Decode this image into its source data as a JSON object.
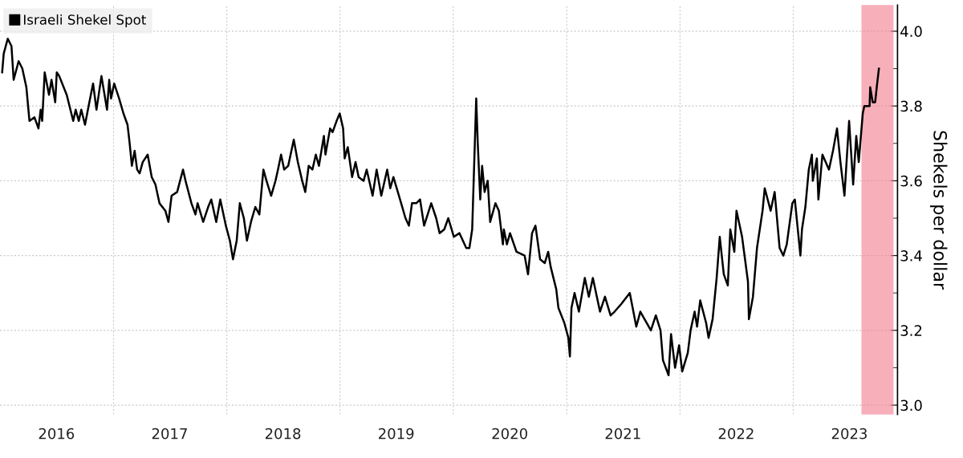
{
  "chart_data": {
    "type": "line",
    "ylabel": "Shekels per dollar",
    "legend": "top left",
    "grid": true,
    "xlim": [
      "2016-01-01",
      "2023-12-03"
    ],
    "xticks": [
      {
        "value": "2016-07-01",
        "label": "2016"
      },
      {
        "value": "2017-01-01",
        "label": null
      },
      {
        "value": "2017-07-01",
        "label": "2017"
      },
      {
        "value": "2018-01-01",
        "label": null
      },
      {
        "value": "2018-07-01",
        "label": "2018"
      },
      {
        "value": "2019-01-01",
        "label": null
      },
      {
        "value": "2019-07-01",
        "label": "2019"
      },
      {
        "value": "2020-01-01",
        "label": null
      },
      {
        "value": "2020-07-01",
        "label": "2020"
      },
      {
        "value": "2021-01-01",
        "label": null
      },
      {
        "value": "2021-07-01",
        "label": "2021"
      },
      {
        "value": "2022-01-01",
        "label": null
      },
      {
        "value": "2022-07-01",
        "label": "2022"
      },
      {
        "value": "2023-01-01",
        "label": null
      },
      {
        "value": "2023-07-01",
        "label": "2023"
      }
    ],
    "ylim": [
      2.975,
      4.07
    ],
    "yticks": [
      {
        "value": 3.0,
        "label": "3.0"
      },
      {
        "value": 3.1,
        "label": null
      },
      {
        "value": 3.2,
        "label": "3.2"
      },
      {
        "value": 3.3,
        "label": null
      },
      {
        "value": 3.4,
        "label": "3.4"
      },
      {
        "value": 3.5,
        "label": null
      },
      {
        "value": 3.6,
        "label": "3.6"
      },
      {
        "value": 3.7,
        "label": null
      },
      {
        "value": 3.8,
        "label": "3.8"
      },
      {
        "value": 3.9,
        "label": null
      },
      {
        "value": 4.0,
        "label": "4.0"
      }
    ],
    "bands": [
      {
        "axis": "x",
        "from": "2023-08-11",
        "to": "2023-11-18",
        "color": "#f27b8c"
      }
    ],
    "series": [
      {
        "name": "Israeli Shekel Spot",
        "color": "#000000",
        "x": [
          "2016-01-08",
          "2016-01-13",
          "2016-01-26",
          "2016-02-07",
          "2016-02-14",
          "2016-03-01",
          "2016-03-13",
          "2016-03-26",
          "2016-04-05",
          "2016-04-21",
          "2016-05-04",
          "2016-05-11",
          "2016-05-16",
          "2016-05-24",
          "2016-06-07",
          "2016-06-15",
          "2016-06-27",
          "2016-07-02",
          "2016-07-10",
          "2016-08-03",
          "2016-08-24",
          "2016-09-01",
          "2016-09-11",
          "2016-09-19",
          "2016-10-01",
          "2016-10-15",
          "2016-10-27",
          "2016-11-07",
          "2016-11-23",
          "2016-12-11",
          "2016-12-18",
          "2016-12-24",
          "2017-01-03",
          "2017-01-19",
          "2017-02-02",
          "2017-02-15",
          "2017-02-22",
          "2017-03-01",
          "2017-03-10",
          "2017-03-18",
          "2017-03-26",
          "2017-04-05",
          "2017-04-21",
          "2017-05-04",
          "2017-05-16",
          "2017-05-29",
          "2017-06-17",
          "2017-06-27",
          "2017-07-07",
          "2017-07-25",
          "2017-08-13",
          "2017-08-21",
          "2017-09-09",
          "2017-09-22",
          "2017-09-29",
          "2017-10-17",
          "2017-11-02",
          "2017-11-12",
          "2017-11-28",
          "2017-12-11",
          "2017-12-29",
          "2018-01-11",
          "2018-01-21",
          "2018-02-02",
          "2018-02-12",
          "2018-02-25",
          "2018-03-07",
          "2018-03-20",
          "2018-04-03",
          "2018-04-16",
          "2018-04-29",
          "2018-05-09",
          "2018-05-24",
          "2018-06-07",
          "2018-06-15",
          "2018-06-25",
          "2018-07-05",
          "2018-07-18",
          "2018-08-05",
          "2018-08-18",
          "2018-09-01",
          "2018-09-11",
          "2018-09-22",
          "2018-10-04",
          "2018-10-15",
          "2018-10-25",
          "2018-11-10",
          "2018-11-15",
          "2018-11-30",
          "2018-12-08",
          "2018-12-21",
          "2018-12-31",
          "2019-01-11",
          "2019-01-16",
          "2019-01-26",
          "2019-02-09",
          "2019-02-20",
          "2019-03-02",
          "2019-03-18",
          "2019-03-28",
          "2019-04-16",
          "2019-04-29",
          "2019-05-14",
          "2019-06-02",
          "2019-06-12",
          "2019-06-22",
          "2019-07-10",
          "2019-07-31",
          "2019-08-11",
          "2019-08-21",
          "2019-09-04",
          "2019-09-16",
          "2019-09-29",
          "2019-10-22",
          "2019-11-07",
          "2019-11-18",
          "2019-12-03",
          "2019-12-16",
          "2020-01-03",
          "2020-01-21",
          "2020-02-12",
          "2020-02-22",
          "2020-03-02",
          "2020-03-15",
          "2020-03-20",
          "2020-03-28",
          "2020-04-03",
          "2020-04-11",
          "2020-04-21",
          "2020-04-29",
          "2020-05-16",
          "2020-05-27",
          "2020-06-09",
          "2020-06-12",
          "2020-06-22",
          "2020-07-02",
          "2020-07-23",
          "2020-08-18",
          "2020-08-29",
          "2020-09-11",
          "2020-09-22",
          "2020-10-07",
          "2020-10-22",
          "2020-11-02",
          "2020-11-10",
          "2020-11-28",
          "2020-12-05",
          "2020-12-24",
          "2021-01-06",
          "2021-01-11",
          "2021-01-16",
          "2021-01-26",
          "2021-02-09",
          "2021-02-28",
          "2021-03-13",
          "2021-03-26",
          "2021-04-18",
          "2021-05-04",
          "2021-05-22",
          "2021-06-04",
          "2021-06-25",
          "2021-07-23",
          "2021-08-13",
          "2021-08-26",
          "2021-09-29",
          "2021-10-15",
          "2021-10-30",
          "2021-11-07",
          "2021-11-25",
          "2021-12-03",
          "2021-12-16",
          "2021-12-29",
          "2022-01-08",
          "2022-01-26",
          "2022-02-04",
          "2022-02-17",
          "2022-02-25",
          "2022-03-07",
          "2022-03-26",
          "2022-04-03",
          "2022-04-16",
          "2022-04-29",
          "2022-05-09",
          "2022-05-22",
          "2022-06-04",
          "2022-06-12",
          "2022-06-25",
          "2022-07-02",
          "2022-07-20",
          "2022-08-08",
          "2022-08-11",
          "2022-08-24",
          "2022-09-06",
          "2022-09-24",
          "2022-10-01",
          "2022-10-20",
          "2022-11-02",
          "2022-11-18",
          "2022-11-30",
          "2022-12-11",
          "2022-12-29",
          "2023-01-06",
          "2023-01-24",
          "2023-01-29",
          "2023-02-09",
          "2023-02-20",
          "2023-03-02",
          "2023-03-05",
          "2023-03-18",
          "2023-03-23",
          "2023-04-05",
          "2023-04-26",
          "2023-05-09",
          "2023-05-22",
          "2023-06-02",
          "2023-06-15",
          "2023-06-30",
          "2023-07-13",
          "2023-07-23",
          "2023-07-31",
          "2023-08-13",
          "2023-08-18",
          "2023-09-04",
          "2023-09-06",
          "2023-09-14",
          "2023-09-22",
          "2023-09-27",
          "2023-10-04"
        ],
        "values": [
          3.89,
          3.94,
          3.98,
          3.96,
          3.87,
          3.92,
          3.9,
          3.85,
          3.76,
          3.77,
          3.74,
          3.79,
          3.76,
          3.89,
          3.83,
          3.87,
          3.81,
          3.89,
          3.88,
          3.83,
          3.76,
          3.79,
          3.76,
          3.79,
          3.75,
          3.81,
          3.86,
          3.79,
          3.88,
          3.79,
          3.87,
          3.82,
          3.86,
          3.82,
          3.78,
          3.75,
          3.7,
          3.64,
          3.68,
          3.63,
          3.62,
          3.65,
          3.67,
          3.61,
          3.59,
          3.54,
          3.52,
          3.49,
          3.56,
          3.57,
          3.63,
          3.6,
          3.54,
          3.51,
          3.54,
          3.49,
          3.53,
          3.55,
          3.49,
          3.55,
          3.48,
          3.44,
          3.39,
          3.44,
          3.54,
          3.5,
          3.44,
          3.49,
          3.53,
          3.51,
          3.63,
          3.6,
          3.56,
          3.6,
          3.63,
          3.67,
          3.63,
          3.64,
          3.71,
          3.65,
          3.6,
          3.57,
          3.64,
          3.63,
          3.67,
          3.64,
          3.72,
          3.67,
          3.74,
          3.73,
          3.76,
          3.78,
          3.74,
          3.66,
          3.69,
          3.61,
          3.65,
          3.61,
          3.6,
          3.63,
          3.56,
          3.63,
          3.56,
          3.63,
          3.58,
          3.61,
          3.56,
          3.5,
          3.48,
          3.54,
          3.54,
          3.55,
          3.48,
          3.54,
          3.5,
          3.46,
          3.47,
          3.5,
          3.45,
          3.46,
          3.42,
          3.42,
          3.47,
          3.82,
          3.7,
          3.55,
          3.64,
          3.57,
          3.6,
          3.49,
          3.54,
          3.52,
          3.43,
          3.47,
          3.43,
          3.46,
          3.41,
          3.4,
          3.35,
          3.46,
          3.48,
          3.39,
          3.38,
          3.41,
          3.37,
          3.31,
          3.26,
          3.22,
          3.18,
          3.13,
          3.26,
          3.3,
          3.25,
          3.34,
          3.29,
          3.34,
          3.25,
          3.29,
          3.24,
          3.25,
          3.27,
          3.3,
          3.21,
          3.25,
          3.2,
          3.24,
          3.2,
          3.12,
          3.08,
          3.19,
          3.1,
          3.16,
          3.09,
          3.14,
          3.2,
          3.25,
          3.21,
          3.28,
          3.22,
          3.18,
          3.23,
          3.34,
          3.45,
          3.35,
          3.32,
          3.47,
          3.41,
          3.52,
          3.45,
          3.33,
          3.23,
          3.29,
          3.42,
          3.52,
          3.58,
          3.52,
          3.57,
          3.42,
          3.4,
          3.43,
          3.54,
          3.55,
          3.4,
          3.47,
          3.53,
          3.63,
          3.67,
          3.6,
          3.66,
          3.55,
          3.67,
          3.63,
          3.68,
          3.74,
          3.65,
          3.56,
          3.76,
          3.59,
          3.72,
          3.65,
          3.78,
          3.8,
          3.8,
          3.85,
          3.81,
          3.81,
          3.85,
          3.9
        ]
      }
    ]
  }
}
